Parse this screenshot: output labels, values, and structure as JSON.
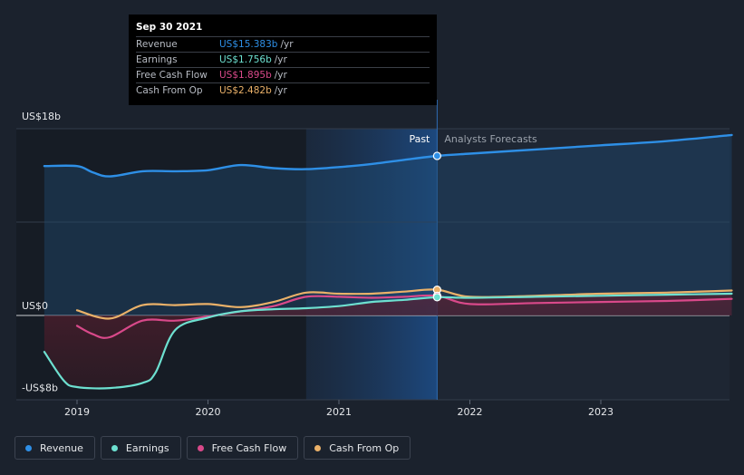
{
  "tooltip": {
    "date": "Sep 30 2021",
    "rows": [
      {
        "label": "Revenue",
        "value": "US$15.383b",
        "unit": "/yr",
        "color": "#2e8fe6"
      },
      {
        "label": "Earnings",
        "value": "US$1.756b",
        "unit": "/yr",
        "color": "#6de0d0"
      },
      {
        "label": "Free Cash Flow",
        "value": "US$1.895b",
        "unit": "/yr",
        "color": "#d9498a"
      },
      {
        "label": "Cash From Op",
        "value": "US$2.482b",
        "unit": "/yr",
        "color": "#eab169"
      }
    ]
  },
  "labels": {
    "past": "Past",
    "forecast": "Analysts Forecasts"
  },
  "legend": [
    {
      "label": "Revenue",
      "color": "#2e8fe6"
    },
    {
      "label": "Earnings",
      "color": "#6de0d0"
    },
    {
      "label": "Free Cash Flow",
      "color": "#d9498a"
    },
    {
      "label": "Cash From Op",
      "color": "#eab169"
    }
  ],
  "chart_data": {
    "type": "line",
    "x_unit": "year",
    "y_unit": "US$ billions",
    "ylim": [
      -8,
      18
    ],
    "xlim": [
      2018.75,
      2024.0
    ],
    "y_ticks": [
      {
        "value": 18,
        "label": "US$18b"
      },
      {
        "value": 0,
        "label": "US$0"
      },
      {
        "value": -8,
        "label": "-US$8b"
      }
    ],
    "x_ticks": [
      {
        "value": 2019.0,
        "label": "2019"
      },
      {
        "value": 2020.0,
        "label": "2020"
      },
      {
        "value": 2021.0,
        "label": "2021"
      },
      {
        "value": 2022.0,
        "label": "2022"
      },
      {
        "value": 2023.0,
        "label": "2023"
      }
    ],
    "past_end": 2021.75,
    "highlight_start": 2020.75,
    "series": [
      {
        "name": "Revenue",
        "color": "#2e8fe6",
        "points": [
          [
            2018.75,
            14.4
          ],
          [
            2019.0,
            14.4
          ],
          [
            2019.12,
            13.8
          ],
          [
            2019.25,
            13.4
          ],
          [
            2019.5,
            13.9
          ],
          [
            2019.75,
            13.9
          ],
          [
            2020.0,
            14.0
          ],
          [
            2020.25,
            14.5
          ],
          [
            2020.5,
            14.2
          ],
          [
            2020.75,
            14.1
          ],
          [
            2021.0,
            14.3
          ],
          [
            2021.25,
            14.6
          ],
          [
            2021.5,
            15.0
          ],
          [
            2021.75,
            15.383
          ],
          [
            2022.0,
            15.6
          ],
          [
            2022.5,
            16.0
          ],
          [
            2023.0,
            16.4
          ],
          [
            2023.5,
            16.8
          ],
          [
            2024.0,
            17.4
          ]
        ]
      },
      {
        "name": "Earnings",
        "color": "#6de0d0",
        "points": [
          [
            2018.75,
            -3.5
          ],
          [
            2018.9,
            -6.3
          ],
          [
            2019.0,
            -6.9
          ],
          [
            2019.25,
            -7.0
          ],
          [
            2019.5,
            -6.5
          ],
          [
            2019.6,
            -5.5
          ],
          [
            2019.75,
            -1.4
          ],
          [
            2020.0,
            -0.2
          ],
          [
            2020.25,
            0.4
          ],
          [
            2020.5,
            0.6
          ],
          [
            2020.75,
            0.7
          ],
          [
            2021.0,
            0.9
          ],
          [
            2021.25,
            1.3
          ],
          [
            2021.5,
            1.5
          ],
          [
            2021.75,
            1.756
          ],
          [
            2022.0,
            1.7
          ],
          [
            2022.5,
            1.8
          ],
          [
            2023.0,
            1.9
          ],
          [
            2023.5,
            2.0
          ],
          [
            2024.0,
            2.1
          ]
        ]
      },
      {
        "name": "Free Cash Flow",
        "color": "#d9498a",
        "points": [
          [
            2019.0,
            -1.0
          ],
          [
            2019.12,
            -1.8
          ],
          [
            2019.25,
            -2.1
          ],
          [
            2019.5,
            -0.5
          ],
          [
            2019.75,
            -0.5
          ],
          [
            2020.0,
            -0.1
          ],
          [
            2020.25,
            0.4
          ],
          [
            2020.5,
            0.9
          ],
          [
            2020.75,
            1.8
          ],
          [
            2021.0,
            1.8
          ],
          [
            2021.25,
            1.7
          ],
          [
            2021.5,
            1.8
          ],
          [
            2021.75,
            1.895
          ],
          [
            2022.0,
            1.1
          ],
          [
            2022.5,
            1.2
          ],
          [
            2023.0,
            1.3
          ],
          [
            2023.5,
            1.4
          ],
          [
            2024.0,
            1.6
          ]
        ]
      },
      {
        "name": "Cash From Op",
        "color": "#eab169",
        "points": [
          [
            2019.0,
            0.5
          ],
          [
            2019.25,
            -0.3
          ],
          [
            2019.5,
            1.0
          ],
          [
            2019.75,
            1.0
          ],
          [
            2020.0,
            1.1
          ],
          [
            2020.25,
            0.8
          ],
          [
            2020.5,
            1.3
          ],
          [
            2020.75,
            2.2
          ],
          [
            2021.0,
            2.1
          ],
          [
            2021.25,
            2.1
          ],
          [
            2021.5,
            2.3
          ],
          [
            2021.75,
            2.482
          ],
          [
            2022.0,
            1.8
          ],
          [
            2022.5,
            1.9
          ],
          [
            2023.0,
            2.1
          ],
          [
            2023.5,
            2.2
          ],
          [
            2024.0,
            2.4
          ]
        ]
      }
    ]
  }
}
